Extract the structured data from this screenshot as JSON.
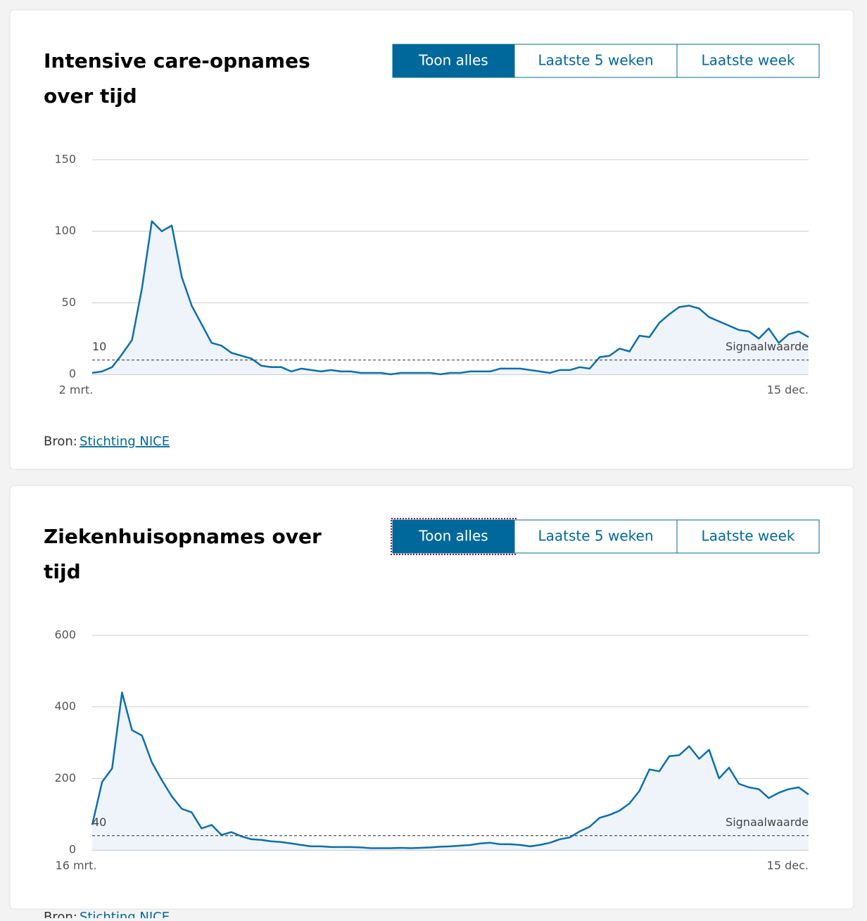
{
  "chart_data": [
    {
      "type": "line",
      "title": "Intensive care-opnames over tijd",
      "values": [
        1,
        2,
        5,
        14,
        24,
        60,
        107,
        100,
        104,
        68,
        48,
        35,
        22,
        20,
        15,
        13,
        11,
        6,
        5,
        5,
        2,
        4,
        3,
        2,
        3,
        2,
        2,
        1,
        1,
        1,
        0,
        1,
        1,
        1,
        1,
        0,
        1,
        1,
        2,
        2,
        2,
        4,
        4,
        4,
        3,
        2,
        1,
        3,
        3,
        5,
        4,
        12,
        13,
        18,
        16,
        27,
        26,
        36,
        42,
        47,
        48,
        46,
        40,
        37,
        34,
        31,
        30,
        25,
        32,
        22,
        28,
        30,
        26
      ],
      "xticks": [
        {
          "value": 0,
          "label": "2 mrt."
        },
        {
          "value": 72,
          "label": "15 dec."
        }
      ],
      "xlim": [
        0,
        72
      ],
      "ylim": [
        0,
        150
      ],
      "yticks": [
        0,
        50,
        100,
        150
      ],
      "grid": true,
      "color": "#0b6fae",
      "threshold": 10,
      "threshold_label": "Signaalwaarde"
    },
    {
      "type": "line",
      "title": "Ziekenhuisopnames over tijd",
      "values": [
        70,
        190,
        228,
        440,
        335,
        320,
        245,
        195,
        150,
        115,
        105,
        60,
        70,
        42,
        50,
        38,
        30,
        28,
        24,
        22,
        18,
        14,
        10,
        10,
        8,
        8,
        8,
        7,
        5,
        5,
        5,
        6,
        5,
        6,
        7,
        9,
        10,
        12,
        14,
        18,
        20,
        16,
        16,
        14,
        10,
        14,
        20,
        30,
        35,
        52,
        65,
        90,
        98,
        110,
        130,
        165,
        225,
        220,
        262,
        265,
        290,
        255,
        280,
        200,
        230,
        185,
        175,
        170,
        145,
        160,
        170,
        175,
        155
      ],
      "xticks": [
        {
          "value": 0,
          "label": "16 mrt."
        },
        {
          "value": 72,
          "label": "15 dec."
        }
      ],
      "xlim": [
        0,
        72
      ],
      "ylim": [
        0,
        600
      ],
      "yticks": [
        0,
        200,
        400,
        600
      ],
      "grid": true,
      "color": "#0b6fae",
      "threshold": 40,
      "threshold_label": "Signaalwaarde"
    }
  ],
  "panels": [
    {
      "buttons": [
        "Toon alles",
        "Laatste 5 weken",
        "Laatste week"
      ],
      "source_label": "Bron:",
      "source_link": "Stichting NICE"
    },
    {
      "buttons": [
        "Toon alles",
        "Laatste 5 weken",
        "Laatste week"
      ],
      "source_label": "Bron:",
      "source_link": "Stichting NICE"
    }
  ]
}
